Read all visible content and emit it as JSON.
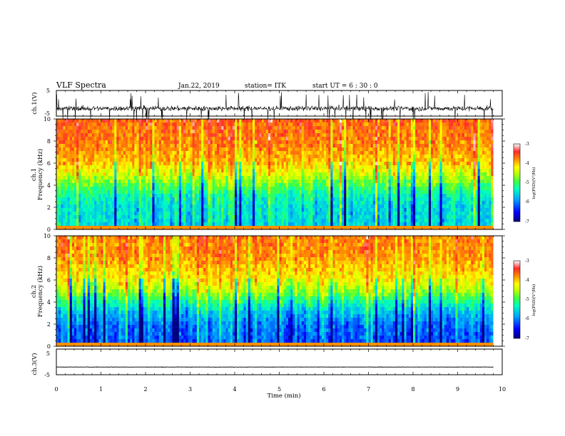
{
  "header": {
    "title": "VLF Spectra",
    "date": "Jan.22, 2019",
    "station": "station= ITK",
    "start": "start UT =   6 : 30 : 0"
  },
  "chart_data": [
    {
      "type": "line",
      "name": "ch1-waveform",
      "ylabel": "ch.1(V)",
      "ylim": [
        -5,
        5
      ],
      "yticks": [
        "5",
        "-5"
      ],
      "xlim": [
        0,
        10
      ],
      "baseline": -2,
      "noise_sd": 0.7,
      "spike_max": 5
    },
    {
      "type": "heatmap",
      "name": "ch1-spectrogram",
      "ylabel_line1": "ch.1",
      "ylabel_line2": "Frequency  (kHz)",
      "yticks": [
        "0",
        "2",
        "4",
        "6",
        "8",
        "10"
      ],
      "ylim": [
        0,
        10
      ],
      "xlim": [
        0,
        9.8
      ],
      "colorbar": {
        "label": "log(PSD)(V²/Hz)",
        "ticks": [
          "-3",
          "-4",
          "-5",
          "-6",
          "-7"
        ],
        "range": [
          -7,
          -3
        ]
      },
      "profile_log_psd": {
        "freq_khz": [
          0,
          1,
          2,
          3,
          4,
          5,
          6,
          8,
          10
        ],
        "value": [
          -5.6,
          -5.5,
          -5.5,
          -5.3,
          -4.9,
          -4.4,
          -4.0,
          -3.7,
          -3.6
        ]
      }
    },
    {
      "type": "heatmap",
      "name": "ch2-spectrogram",
      "ylabel_line1": "ch.2",
      "ylabel_line2": "Frequency  (kHz)",
      "yticks": [
        "0",
        "2",
        "4",
        "6",
        "8",
        "10"
      ],
      "ylim": [
        0,
        10
      ],
      "xlim": [
        0,
        9.8
      ],
      "colorbar": {
        "label": "log(PSD)(V²/Hz)",
        "ticks": [
          "-3",
          "-4",
          "-5",
          "-6",
          "-7"
        ],
        "range": [
          -7,
          -3
        ]
      },
      "profile_log_psd": {
        "freq_khz": [
          0,
          1,
          2,
          3,
          4,
          5,
          6,
          8,
          10
        ],
        "value": [
          -6.2,
          -6.1,
          -6.0,
          -5.7,
          -5.2,
          -4.6,
          -4.2,
          -3.8,
          -3.7
        ]
      }
    },
    {
      "type": "line",
      "name": "ch3-waveform",
      "ylabel": "ch.3(V)",
      "ylim": [
        -5,
        5
      ],
      "yticks": [
        "5",
        "-5"
      ],
      "xlim": [
        0,
        10
      ],
      "baseline": -2,
      "noise_sd": 0.05,
      "spike_max": 0
    }
  ],
  "xaxis": {
    "label": "Time  (min)",
    "ticks": [
      "0",
      "1",
      "2",
      "3",
      "4",
      "5",
      "6",
      "7",
      "8",
      "9",
      "10"
    ]
  },
  "colors": {
    "colormap": [
      "#000080",
      "#0000ff",
      "#00a0ff",
      "#00ffc0",
      "#40ff40",
      "#c0ff00",
      "#ffff00",
      "#ff9000",
      "#ff2a2a",
      "#ffffff"
    ]
  }
}
